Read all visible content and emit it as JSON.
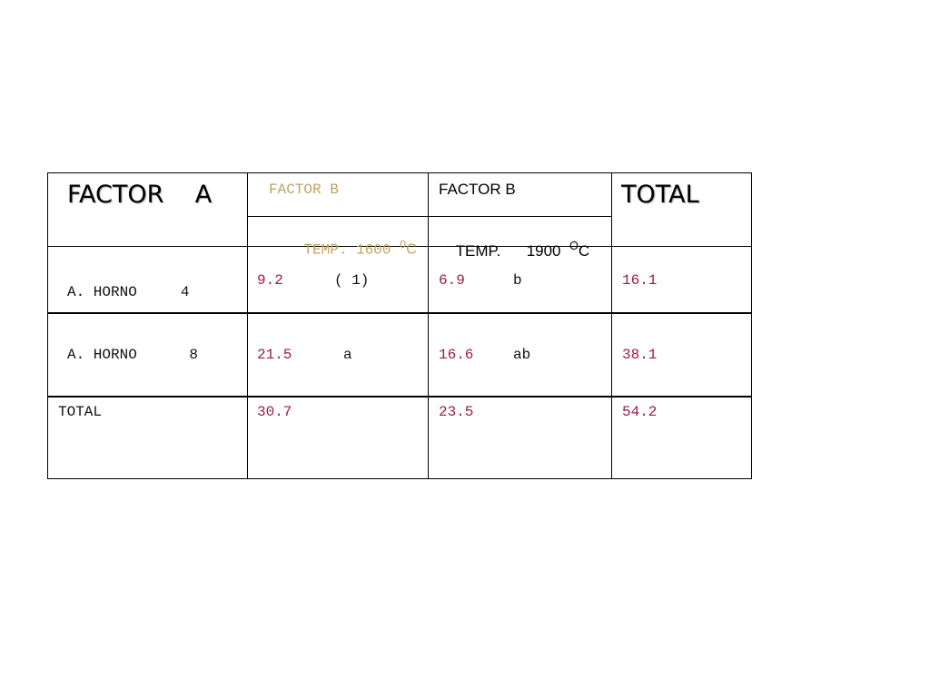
{
  "colors": {
    "header_tan": "#c2a15d",
    "value_crimson": "#9b1b4a",
    "text_black": "#111111"
  },
  "header": {
    "factor_a": "FACTOR    A",
    "factor_b_1": "FACTOR B",
    "temp_1": "TEMP. 1600 ",
    "temp_1_sup": "O",
    "temp_1_unit": "C",
    "factor_b_2": "FACTOR B",
    "temp_2": "TEMP.      1900  ",
    "temp_2_sup": "O",
    "temp_2_unit": "C",
    "total": "TOTAL"
  },
  "rows": [
    {
      "label": "A. HORNO     4",
      "b1_value": "9.2",
      "b1_note": "( 1)",
      "b2_value": "6.9",
      "b2_note": "b",
      "total": "16.1"
    },
    {
      "label": "A. HORNO      8",
      "b1_value": "21.5",
      "b1_note": "a",
      "b2_value": "16.6",
      "b2_note": "ab",
      "total": "38.1"
    }
  ],
  "footer": {
    "label": "TOTAL",
    "b1_total": "30.7",
    "b2_total": "23.5",
    "grand_total": "54.2"
  }
}
